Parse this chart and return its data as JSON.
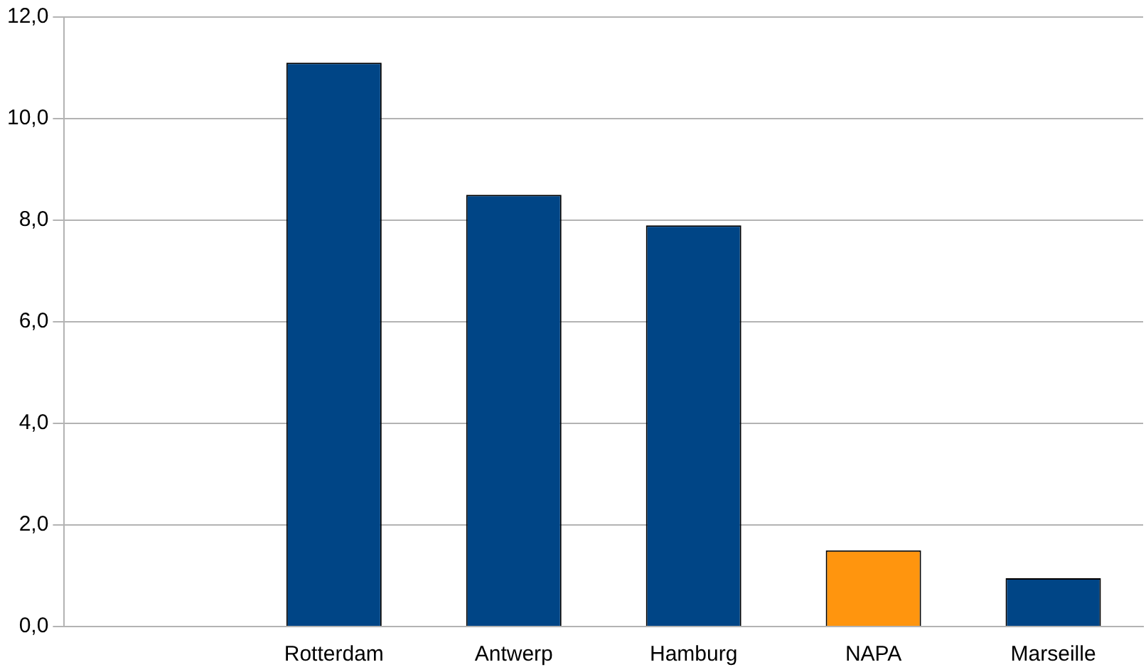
{
  "chart_data": {
    "type": "bar",
    "categories": [
      null,
      "Rotterdam",
      "Antwerp",
      "Hamburg",
      "NAPA",
      "Marseille"
    ],
    "values": [
      null,
      11.1,
      8.5,
      7.9,
      1.5,
      0.95
    ],
    "colors": [
      "#004586",
      "#004586",
      "#004586",
      "#004586",
      "#ff950e",
      "#004586"
    ],
    "ylim": [
      0,
      12
    ],
    "yticks": [
      {
        "value": 0,
        "label": "0,0"
      },
      {
        "value": 2,
        "label": "2,0"
      },
      {
        "value": 4,
        "label": "4,0"
      },
      {
        "value": 6,
        "label": "6,0"
      },
      {
        "value": 8,
        "label": "8,0"
      },
      {
        "value": 10,
        "label": "10,0"
      },
      {
        "value": 12,
        "label": "12,0"
      }
    ],
    "grid": "y",
    "legend": false
  }
}
